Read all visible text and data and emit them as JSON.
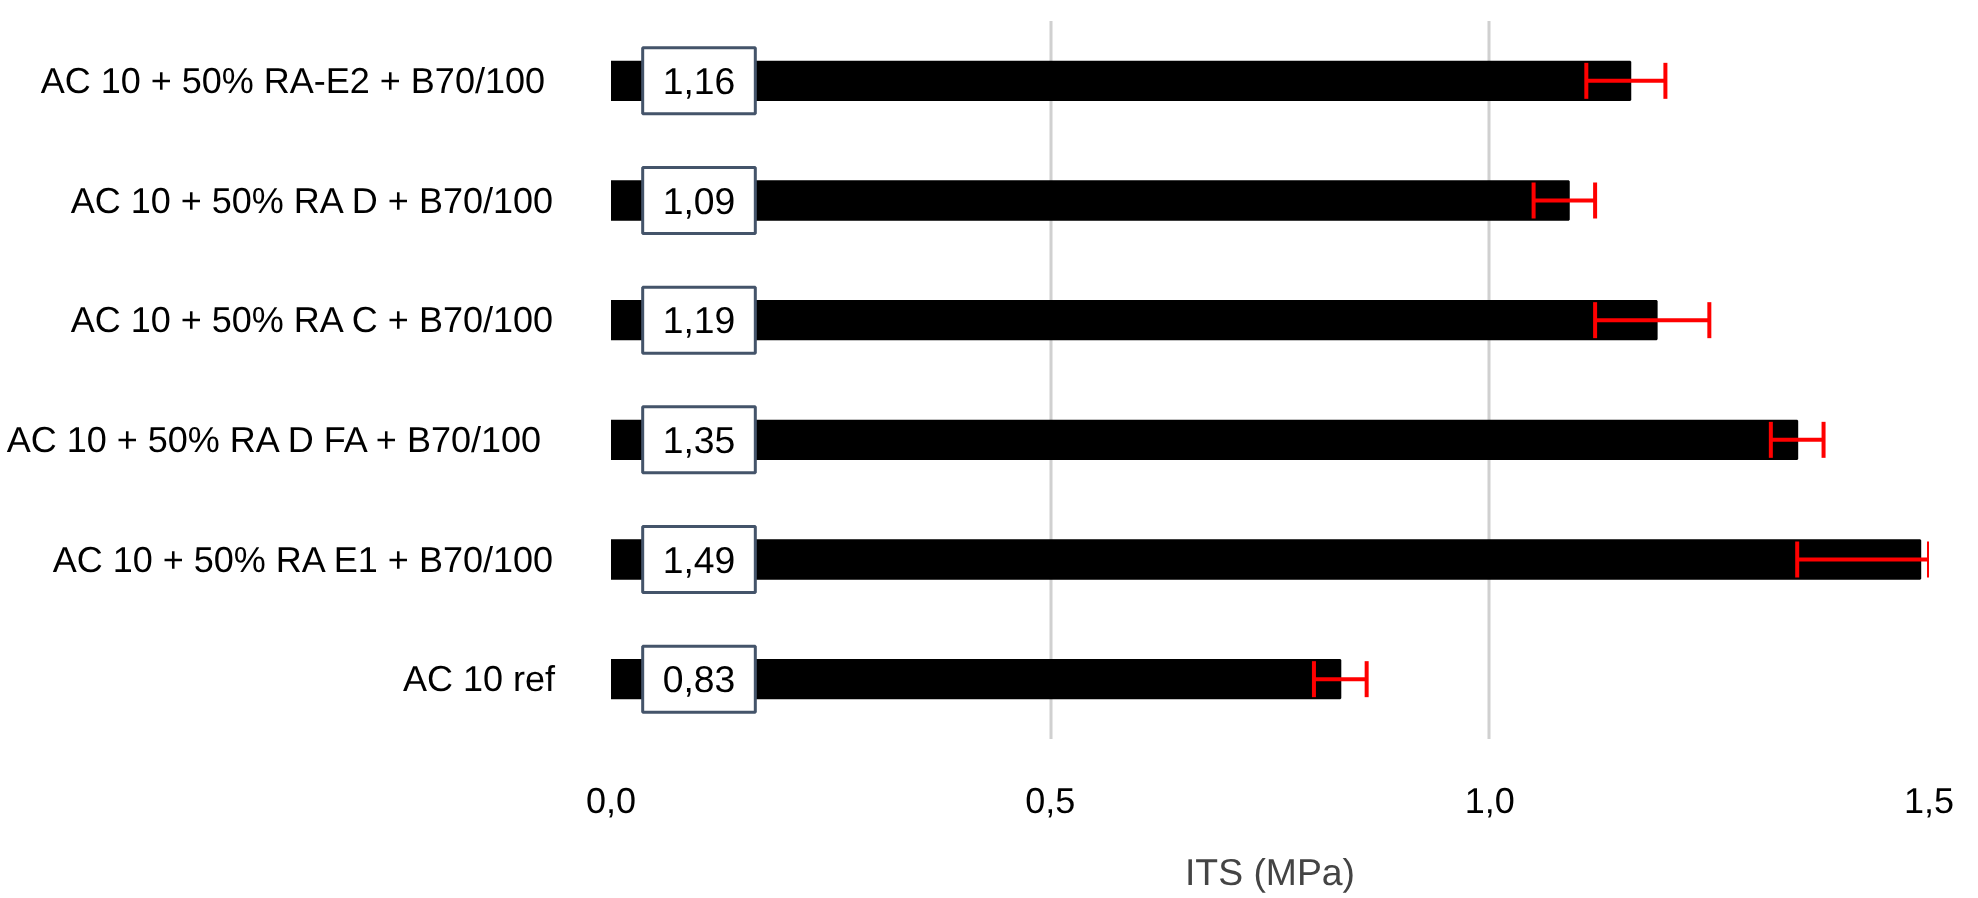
{
  "chart_data": {
    "type": "bar",
    "orientation": "horizontal",
    "xlabel": "ITS (MPa)",
    "categories": [
      "AC 10  + 50% RA-E2 + B70/100",
      "AC 10 + 50% RA D + B70/100",
      "AC 10 + 50% RA C + B70/100",
      "AC 10 + 50%  RA D FA + B70/100",
      "AC 10 + 50% RA E1 + B70/100",
      "AC 10 ref"
    ],
    "series": [
      {
        "color": "#000000",
        "values": [
          1.16,
          1.09,
          1.19,
          1.35,
          1.49,
          0.83
        ],
        "errors": [
          [
            1.11,
            1.2
          ],
          [
            1.05,
            1.12
          ],
          [
            1.12,
            1.25
          ],
          [
            1.32,
            1.38
          ],
          [
            1.35,
            1.5
          ],
          [
            0.8,
            0.86
          ]
        ],
        "value_labels": [
          "1,16",
          "1,09",
          "1,19",
          "1,35",
          "1,49",
          "0,83"
        ]
      }
    ],
    "xlim": [
      0,
      1.5
    ],
    "xticks": [
      {
        "value": 0,
        "label": "0,0"
      },
      {
        "value": 0.5,
        "label": "0,5"
      },
      {
        "value": 1.0,
        "label": "1,0"
      },
      {
        "value": 1.5,
        "label": "1,5"
      }
    ],
    "grid": "x"
  }
}
